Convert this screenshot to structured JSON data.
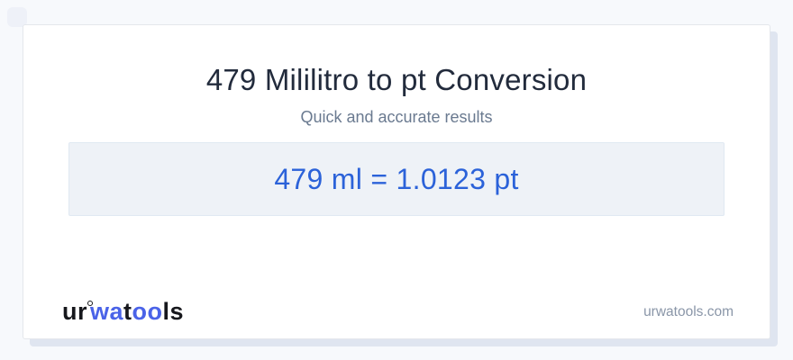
{
  "page": {
    "background_color": "#f7f9fc",
    "card_background": "#ffffff",
    "card_shadow_color": "#dfe5f0"
  },
  "header": {
    "title": "479 Mililitro to pt Conversion",
    "subtitle": "Quick and accurate results"
  },
  "result": {
    "equation": "479 ml = 1.0123 pt",
    "input_value": "479",
    "input_unit": "ml",
    "output_value": "1.0123",
    "output_unit": "pt",
    "box_background": "#eef2f7",
    "text_color": "#2b62d9"
  },
  "footer": {
    "logo": {
      "segments": [
        {
          "text": "ur",
          "color": "#16171c"
        },
        {
          "text": "wa",
          "color": "#4a63e8"
        },
        {
          "text": "t",
          "color": "#16171c"
        },
        {
          "text": "oo",
          "color": "#4a63e8"
        },
        {
          "text": "ls",
          "color": "#16171c"
        }
      ],
      "dark_color": "#16171c",
      "blue_color": "#4a63e8"
    },
    "site_url": "urwatools.com"
  }
}
